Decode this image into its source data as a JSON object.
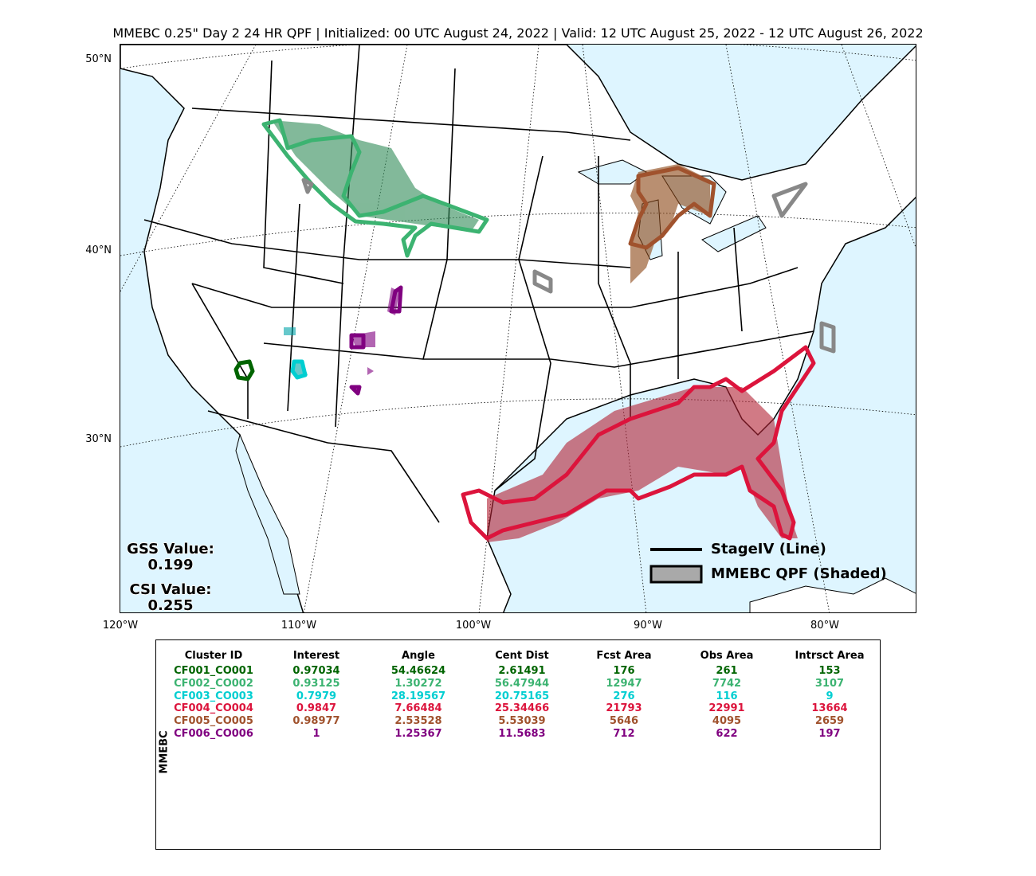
{
  "title": "MMEBC 0.25\" Day 2 24 HR QPF | Initialized: 00 UTC August 24, 2022 | Valid: 12 UTC August 25, 2022 - 12 UTC August 26, 2022",
  "latitude_labels": [
    "50°N",
    "40°N",
    "30°N"
  ],
  "longitude_labels": [
    "120°W",
    "110°W",
    "100°W",
    "90°W",
    "80°W"
  ],
  "scores": {
    "gss_label": "GSS Value:",
    "gss_value": "0.199",
    "csi_label": "CSI Value:",
    "csi_value": "0.255"
  },
  "legend": {
    "line_label": "StageIV (Line)",
    "shaded_label": "MMEBC QPF (Shaded)"
  },
  "colors": {
    "ocean": "#def5ff",
    "land": "#ffffff",
    "unmatched": "#888888"
  },
  "table": {
    "side_label": "MMEBC",
    "headers": [
      "Cluster ID",
      "Interest",
      "Angle",
      "Cent Dist",
      "Fcst Area",
      "Obs Area",
      "Intrsct Area"
    ],
    "rows": [
      {
        "color": "#006400",
        "cells": [
          "CF001_CO001",
          "0.97034",
          "54.46624",
          "2.61491",
          "176",
          "261",
          "153"
        ]
      },
      {
        "color": "#3cb371",
        "cells": [
          "CF002_CO002",
          "0.93125",
          "1.30272",
          "56.47944",
          "12947",
          "7742",
          "3107"
        ]
      },
      {
        "color": "#00ced1",
        "cells": [
          "CF003_CO003",
          "0.7979",
          "28.19567",
          "20.75165",
          "276",
          "116",
          "9"
        ]
      },
      {
        "color": "#dc143c",
        "cells": [
          "CF004_CO004",
          "0.9847",
          "7.66484",
          "25.34466",
          "21793",
          "22991",
          "13664"
        ]
      },
      {
        "color": "#a0522d",
        "cells": [
          "CF005_CO005",
          "0.98977",
          "2.53528",
          "5.53039",
          "5646",
          "4095",
          "2659"
        ]
      },
      {
        "color": "#800080",
        "cells": [
          "CF006_CO006",
          "1",
          "1.25367",
          "11.5683",
          "712",
          "622",
          "197"
        ]
      }
    ]
  }
}
